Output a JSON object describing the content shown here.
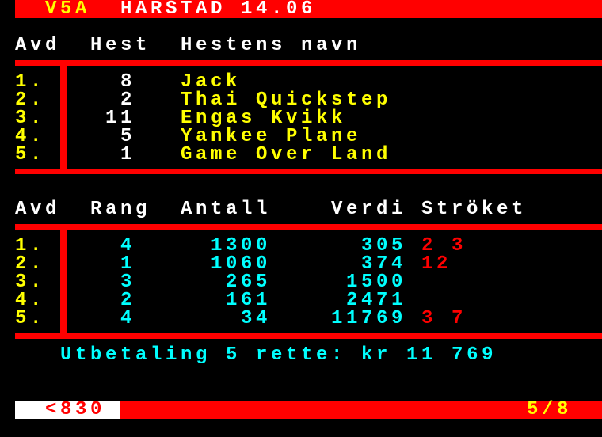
{
  "header": {
    "code": "V5A",
    "title": "HARSTAD 14.06"
  },
  "table1": {
    "headers": [
      "Avd",
      "Hest",
      "Hestens navn"
    ],
    "rows": [
      {
        "avd": "1.",
        "hest": "8",
        "name": "Jack"
      },
      {
        "avd": "2.",
        "hest": "2",
        "name": "Thai Quickstep"
      },
      {
        "avd": "3.",
        "hest": "11",
        "name": "Engas Kvikk"
      },
      {
        "avd": "4.",
        "hest": "5",
        "name": "Yankee Plane"
      },
      {
        "avd": "5.",
        "hest": "1",
        "name": "Game Over Land"
      }
    ]
  },
  "table2": {
    "headers": [
      "Avd",
      "Rang",
      "Antall",
      "Verdi",
      "Ströket"
    ],
    "rows": [
      {
        "avd": "1.",
        "rang": "4",
        "antall": "1300",
        "verdi": "305",
        "stroket": "2 3"
      },
      {
        "avd": "2.",
        "rang": "1",
        "antall": "1060",
        "verdi": "374",
        "stroket": "12"
      },
      {
        "avd": "3.",
        "rang": "3",
        "antall": "265",
        "verdi": "1500",
        "stroket": ""
      },
      {
        "avd": "4.",
        "rang": "2",
        "antall": "161",
        "verdi": "2471",
        "stroket": ""
      },
      {
        "avd": "5.",
        "rang": "4",
        "antall": "34",
        "verdi": "11769",
        "stroket": "3 7"
      }
    ]
  },
  "payout": "Utbetaling 5 rette: kr 11 769",
  "footer": {
    "prev_page": "<830",
    "page_indicator": "5/8"
  },
  "colors": {
    "red": "#ff0000",
    "yellow": "#ffff00",
    "cyan": "#00ffff",
    "white": "#ffffff"
  }
}
